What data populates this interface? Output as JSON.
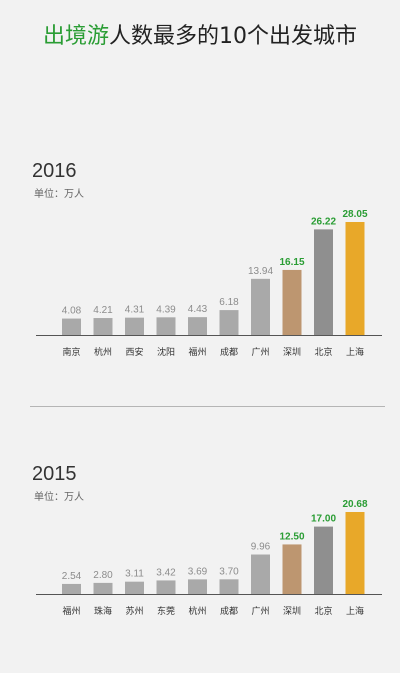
{
  "title": {
    "highlight": "出境游",
    "rest": "人数最多的10个出发城市"
  },
  "chart_data": [
    {
      "type": "bar",
      "title": "2016",
      "ylabel": "单位：万人",
      "categories": [
        "南京",
        "杭州",
        "西安",
        "沈阳",
        "福州",
        "成都",
        "广州",
        "深圳",
        "北京",
        "上海"
      ],
      "values": [
        4.08,
        4.21,
        4.31,
        4.39,
        4.43,
        6.18,
        13.94,
        16.15,
        26.22,
        28.05
      ],
      "labels": [
        "4.08",
        "4.21",
        "4.31",
        "4.39",
        "4.43",
        "6.18",
        "13.94",
        "16.15",
        "26.22",
        "28.05"
      ],
      "colors": [
        "#a9a9a9",
        "#a9a9a9",
        "#a9a9a9",
        "#a9a9a9",
        "#a9a9a9",
        "#a9a9a9",
        "#a9a9a9",
        "#bd9670",
        "#8f8f8f",
        "#e8a829"
      ],
      "label_colors": [
        "#8c8c8c",
        "#8c8c8c",
        "#8c8c8c",
        "#8c8c8c",
        "#8c8c8c",
        "#8c8c8c",
        "#8c8c8c",
        "#2a9d34",
        "#2a9d34",
        "#2a9d34"
      ],
      "ylim": [
        0,
        28.05
      ],
      "grid": false
    },
    {
      "type": "bar",
      "title": "2015",
      "ylabel": "单位：万人",
      "categories": [
        "福州",
        "珠海",
        "苏州",
        "东莞",
        "杭州",
        "成都",
        "广州",
        "深圳",
        "北京",
        "上海"
      ],
      "values": [
        2.54,
        2.8,
        3.11,
        3.42,
        3.69,
        3.7,
        9.96,
        12.5,
        17.0,
        20.68
      ],
      "labels": [
        "2.54",
        "2.80",
        "3.11",
        "3.42",
        "3.69",
        "3.70",
        "9.96",
        "12.50",
        "17.00",
        "20.68"
      ],
      "colors": [
        "#a9a9a9",
        "#a9a9a9",
        "#a9a9a9",
        "#a9a9a9",
        "#a9a9a9",
        "#a9a9a9",
        "#a9a9a9",
        "#bd9670",
        "#8f8f8f",
        "#e8a829"
      ],
      "label_colors": [
        "#8c8c8c",
        "#8c8c8c",
        "#8c8c8c",
        "#8c8c8c",
        "#8c8c8c",
        "#8c8c8c",
        "#8c8c8c",
        "#2a9d34",
        "#2a9d34",
        "#2a9d34"
      ],
      "ylim": [
        0,
        20.68
      ],
      "grid": false
    }
  ]
}
